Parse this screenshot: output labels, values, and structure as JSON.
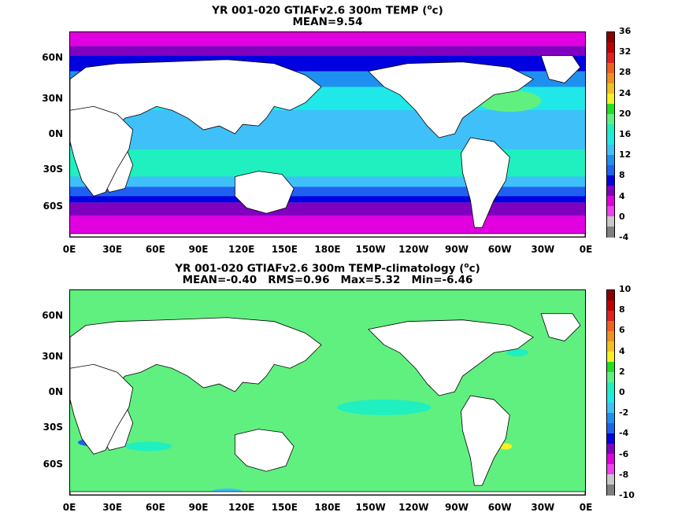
{
  "panels": [
    {
      "title_line1": "YR 001-020 GTIAFv2.6 300m TEMP (",
      "title_sup": "o",
      "title_line1_end": "c)",
      "title_line2": "MEAN=9.54",
      "lat_labels": [
        "60N",
        "30N",
        "0N",
        "30S",
        "60S"
      ],
      "lon_labels": [
        "0E",
        "30E",
        "60E",
        "90E",
        "120E",
        "150E",
        "180E",
        "150W",
        "120W",
        "90W",
        "60W",
        "30W",
        "0E"
      ],
      "colorbar_labels": [
        "36",
        "32",
        "28",
        "24",
        "20",
        "16",
        "12",
        "8",
        "4",
        "0",
        "-4"
      ],
      "colorbar_colors": [
        "#8b0000",
        "#c00000",
        "#e02020",
        "#f06020",
        "#f09020",
        "#f0c020",
        "#f8f020",
        "#20e020",
        "#60f080",
        "#20f0c0",
        "#20e8e8",
        "#40c0f8",
        "#2090f0",
        "#2060f0",
        "#0000e0",
        "#8000c0",
        "#e000e0",
        "#f040f0",
        "#c8c8c8",
        "#808080"
      ],
      "sample_colors": {
        "land": "#ffffff",
        "deep_ocean": "#20b0f8"
      }
    },
    {
      "title_line1": "YR 001-020 GTIAFv2.6 300m TEMP-climatology (",
      "title_sup": "o",
      "title_line1_end": "c)",
      "title_line2": "MEAN=-0.40   RMS=0.96   Max=5.32   Min=-6.46",
      "lat_labels": [
        "60N",
        "30N",
        "0N",
        "30S",
        "60S"
      ],
      "lon_labels": [
        "0E",
        "30E",
        "60E",
        "90E",
        "120E",
        "150E",
        "180E",
        "150W",
        "120W",
        "90W",
        "60W",
        "30W",
        "0E"
      ],
      "colorbar_labels": [
        "10",
        "8",
        "6",
        "4",
        "2",
        "0",
        "-2",
        "-4",
        "-6",
        "-8",
        "-10"
      ],
      "colorbar_colors": [
        "#8b0000",
        "#c00000",
        "#e02020",
        "#f06020",
        "#f09020",
        "#f0c020",
        "#f8f020",
        "#20e020",
        "#60f080",
        "#20f0c0",
        "#20e8e8",
        "#40c0f8",
        "#2090f0",
        "#2060f0",
        "#0000e0",
        "#8000c0",
        "#e000e0",
        "#f040f0",
        "#c8c8c8",
        "#808080"
      ],
      "sample_colors": {
        "land": "#ffffff",
        "deep_ocean": "#60f080"
      }
    }
  ]
}
